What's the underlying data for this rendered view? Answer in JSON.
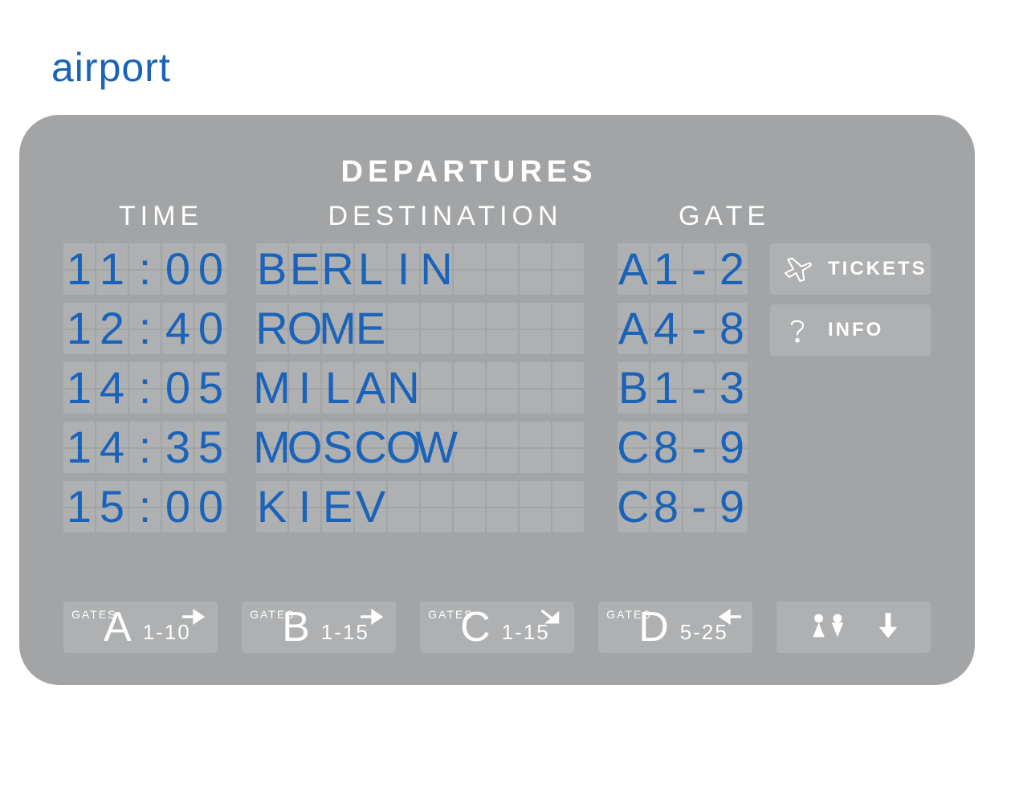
{
  "title": "airport",
  "board": {
    "header": "DEPARTURES",
    "columns": {
      "time": "TIME",
      "destination": "DESTINATION",
      "gate": "GATE"
    },
    "time_slots": 5,
    "dest_slots": 10,
    "gate_slots": 4,
    "flights": [
      {
        "time": "11:00",
        "destination": "BERLIN",
        "gate": "A1-2"
      },
      {
        "time": "12:40",
        "destination": "ROME",
        "gate": "A4-8"
      },
      {
        "time": "14:05",
        "destination": "MILAN",
        "gate": "B1-3"
      },
      {
        "time": "14:35",
        "destination": "MOSCOW",
        "gate": "C8-9"
      },
      {
        "time": "15:00",
        "destination": "KIEV",
        "gate": "C8-9"
      }
    ],
    "colors": {
      "board_bg": "#a2a4a6",
      "flap_bg": "#aeb0b2",
      "text_white": "#ffffff",
      "text_blue": "#1a63b8",
      "page_bg": "#ffffff"
    },
    "typography": {
      "title_size": 50,
      "header_size": 38,
      "column_size": 34,
      "flap_char_size": 56,
      "button_size": 24,
      "gate_letter_size": 52,
      "gate_range_size": 26,
      "gate_small_size": 14
    }
  },
  "buttons": {
    "tickets": "TICKETS",
    "info": "INFO"
  },
  "gate_signs": [
    {
      "label": "GATES",
      "letter": "A",
      "range": "1-10",
      "arrow": "right"
    },
    {
      "label": "GATES",
      "letter": "B",
      "range": "1-15",
      "arrow": "right"
    },
    {
      "label": "GATES",
      "letter": "C",
      "range": "1-15",
      "arrow": "down-right"
    },
    {
      "label": "GATES",
      "letter": "D",
      "range": "5-25",
      "arrow": "left"
    }
  ],
  "misc_sign": {
    "icons": [
      "person-up",
      "person-down",
      "arrow-down"
    ]
  }
}
